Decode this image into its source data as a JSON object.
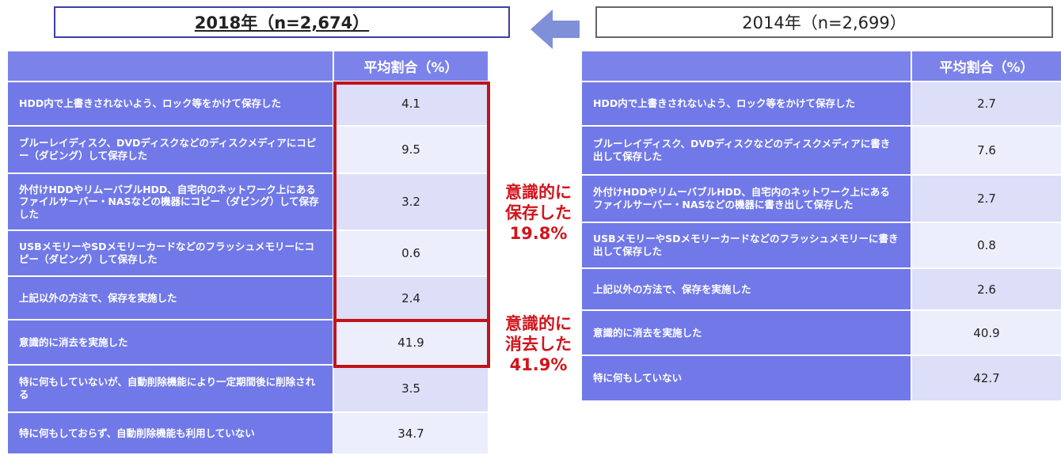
{
  "left": {
    "title": "2018年（n=2,674）",
    "header": "平均割合（%）",
    "rows": [
      [
        "HDD内で上書きされないよう、ロック等をかけて保存した",
        "4.1"
      ],
      [
        "ブルーレイディスク、DVDディスクなどのディスクメディアにコピー（ダビング）して保存した",
        "9.5"
      ],
      [
        "外付けHDDやリムーバブルHDD、自宅内のネットワーク上にあるファイルサーバー・NASなどの機器にコピー（ダビング）して保存した",
        "3.2"
      ],
      [
        "USBメモリーやSDメモリーカードなどのフラッシュメモリーにコピー（ダビング）して保存した",
        "0.6"
      ],
      [
        "上記以外の方法で、保存を実施した",
        "2.4"
      ],
      [
        "意識的に消去を実施した",
        "41.9"
      ],
      [
        "特に何もしていないが、自動削除機能により一定期間後に削除される",
        "3.5"
      ],
      [
        "特に何もしておらず、自動削除機能も利用していない",
        "34.7"
      ]
    ]
  },
  "right": {
    "title": "2014年（n=2,699）",
    "header": "平均割合（%）",
    "rows": [
      [
        "HDD内で上書きされないよう、ロック等をかけて保存した",
        "2.7"
      ],
      [
        "ブルーレイディスク、DVDディスクなどのディスクメディアに書き出して保存した",
        "7.6"
      ],
      [
        "外付けHDDやリムーバブルHDD、自宅内のネットワーク上にあるファイルサーバー・NASなどの機器に書き出して保存した",
        "2.7"
      ],
      [
        "USBメモリーやSDメモリーカードなどのフラッシュメモリーに書き出して保存した",
        "0.8"
      ],
      [
        "上記以外の方法で、保存を実施した",
        "2.6"
      ],
      [
        "意識的に消去を実施した",
        "40.9"
      ],
      [
        "特に何もしていない",
        "42.7"
      ]
    ]
  },
  "annotations": [
    [
      "意識的に",
      "保存した",
      "19.8%"
    ],
    [
      "意識的に",
      "消去した",
      "41.9%"
    ]
  ]
}
